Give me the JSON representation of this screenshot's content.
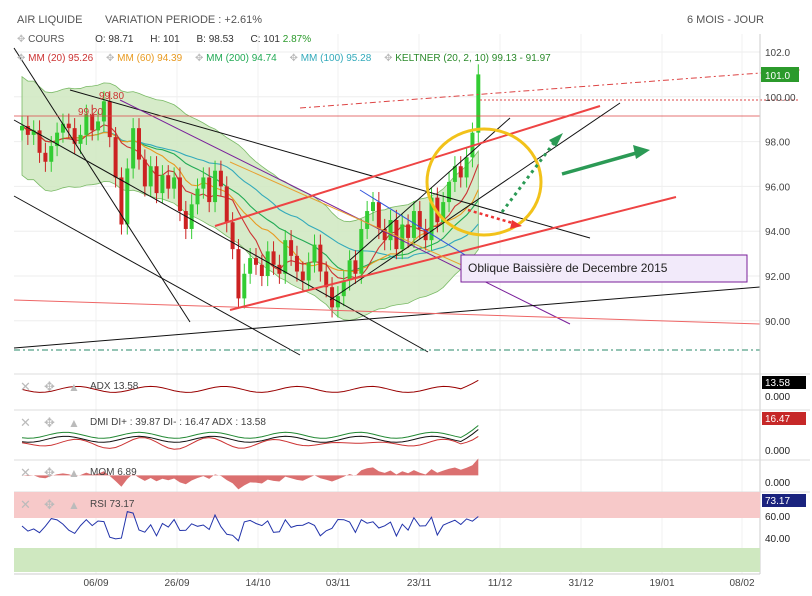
{
  "header": {
    "symbol": "AIR LIQUIDE",
    "variation": "VARIATION PERIODE : +2.61%",
    "period": "6 MOIS - JOUR"
  },
  "legend": {
    "cours": "COURS",
    "open": "O: 98.71",
    "high": "H: 101",
    "low": "B: 98.53",
    "close": "C: 101",
    "change": "2.87%",
    "mm20": "MM (20)  95.26",
    "mm60": "MM (60)  94.39",
    "mm200": "MM (200)  94.74",
    "mm100": "MM (100)  95.28",
    "keltner": "KELTNER (20, 2, 10)  99.13 - 91.97"
  },
  "colors": {
    "up": "#33cc33",
    "down": "#cc2222",
    "mm20": "#cc3333",
    "mm60": "#e89a20",
    "mm200": "#22aa55",
    "mm100": "#33aabb",
    "keltner": "#33aa33",
    "icon": "#bbbbbb"
  },
  "chart_data": {
    "type": "candlestick",
    "y_ticks": [
      "102.0",
      "100.00",
      "98.00",
      "96.00",
      "94.00",
      "92.00",
      "90.00"
    ],
    "x_ticks": [
      "06/09",
      "26/09",
      "14/10",
      "03/11",
      "23/11",
      "11/12",
      "31/12",
      "19/01",
      "08/02"
    ],
    "last_price": "101.0",
    "price_labels": [
      "99.80",
      "99.20"
    ],
    "annotation": "Oblique Baissière de Decembre 2015",
    "closes": [
      98.7,
      98.3,
      98.5,
      97.5,
      97.1,
      97.8,
      98.4,
      98.8,
      98.6,
      97.9,
      98.3,
      99.2,
      98.5,
      98.9,
      99.8,
      98.2,
      96.4,
      94.3,
      96.8,
      98.6,
      97.2,
      96.0,
      96.9,
      95.7,
      96.5,
      95.9,
      96.4,
      94.9,
      94.1,
      95.2,
      95.9,
      96.4,
      95.3,
      96.7,
      96.0,
      94.4,
      93.2,
      91.0,
      92.1,
      92.8,
      92.5,
      92.0,
      93.1,
      92.5,
      92.1,
      93.6,
      92.9,
      92.2,
      91.8,
      92.6,
      93.4,
      92.2,
      91.5,
      90.6,
      91.1,
      91.8,
      92.7,
      92.1,
      94.1,
      94.9,
      95.3,
      94.1,
      93.6,
      94.5,
      93.2,
      94.3,
      93.7,
      94.9,
      94.1,
      93.6,
      95.5,
      94.4,
      95.3,
      96.2,
      96.9,
      96.4,
      97.3,
      98.4,
      101.0
    ],
    "adx": {
      "label": "ADX",
      "value": "13.58",
      "axis": [
        "0.000"
      ]
    },
    "dmi": {
      "label": "DMI DI+ : 39.87 DI- : 16.47 ADX : 13.58",
      "value": "16.47",
      "axis": [
        "0.000"
      ]
    },
    "mom": {
      "label": "MOM",
      "value": "6.89",
      "axis": [
        "0.000"
      ]
    },
    "rsi": {
      "label": "RSI",
      "value": "73.17",
      "axis": [
        "60.00",
        "40.00"
      ]
    }
  }
}
